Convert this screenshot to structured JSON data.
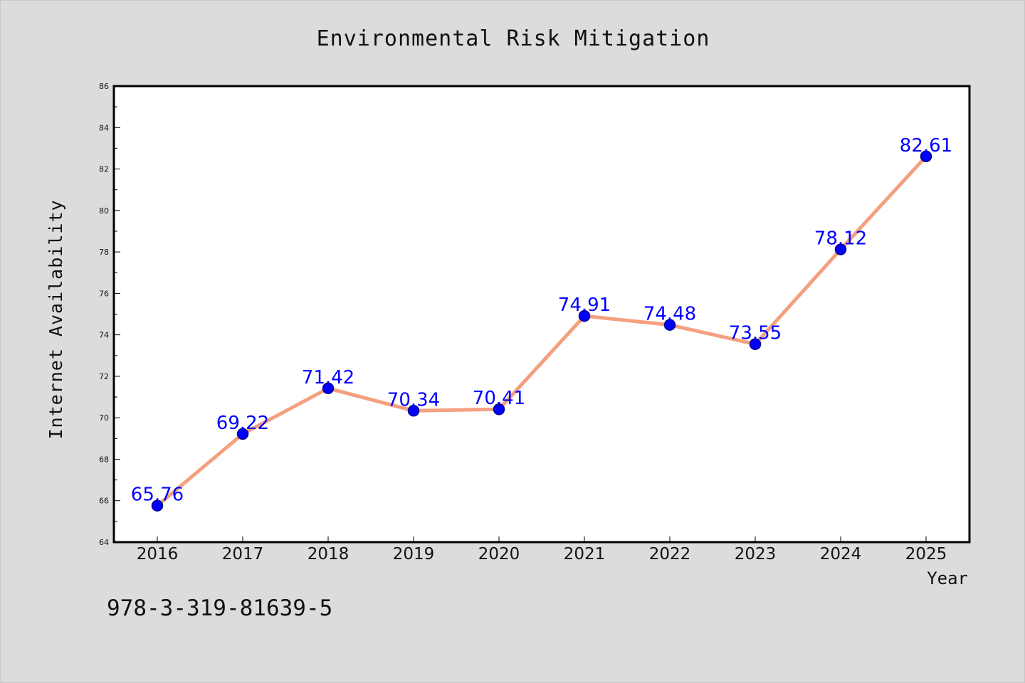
{
  "page": {
    "background": "#dcdcdc",
    "footer_code": "978-3-319-81639-5"
  },
  "chart_data": {
    "type": "line",
    "title": "Environmental Risk Mitigation",
    "xlabel": "Year",
    "ylabel": "Internet Availability",
    "categories": [
      "2016",
      "2017",
      "2018",
      "2019",
      "2020",
      "2021",
      "2022",
      "2023",
      "2024",
      "2025"
    ],
    "series": [
      {
        "values": [
          65.76,
          69.22,
          71.42,
          70.34,
          70.41,
          74.91,
          74.48,
          73.55,
          78.12,
          82.61
        ],
        "line_color": "#f4a07f",
        "marker_color": "#0000ff",
        "marker_edge": "#00008b",
        "label_color": "#0000ff"
      }
    ],
    "data_labels": [
      "65.76",
      "69.22",
      "71.42",
      "70.34",
      "70.41",
      "74.91",
      "74.48",
      "73.55",
      "78.12",
      "82.61"
    ],
    "ylim": [
      64,
      86
    ],
    "yticks": [
      64,
      66,
      68,
      70,
      72,
      74,
      76,
      78,
      80,
      82,
      84,
      86
    ],
    "y_minor_step": 1,
    "grid": false,
    "legend": "none",
    "plot_background": "#ffffff"
  }
}
